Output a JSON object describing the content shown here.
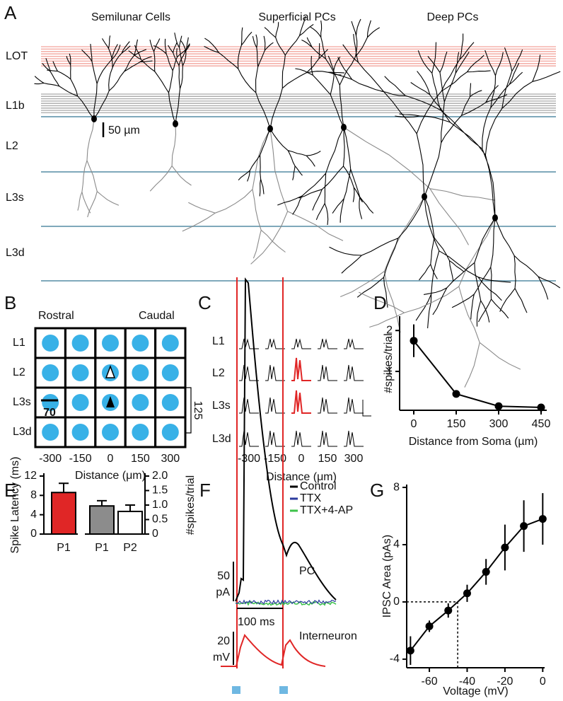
{
  "panel_a": {
    "label": "A",
    "titles": [
      "Semilunar Cells",
      "Superficial PCs",
      "Deep PCs"
    ],
    "layers": [
      "LOT",
      "L1b",
      "L2",
      "L3s",
      "L3d"
    ],
    "scale_bar": "50 µm"
  },
  "panel_b": {
    "label": "B",
    "rostral": "Rostral",
    "caudal": "Caudal",
    "rows": [
      "L1",
      "L2",
      "L3s",
      "L3d"
    ],
    "columns": [
      -300,
      -150,
      0,
      150,
      300
    ],
    "xlabel": "Distance (μm)",
    "width_label": "70",
    "height_label": "125"
  },
  "panel_c": {
    "label": "C",
    "rows": [
      "L1",
      "L2",
      "L3s",
      "L3d"
    ],
    "columns": [
      -300,
      -150,
      0,
      150,
      300
    ],
    "xlabel": "Distance (μm)"
  },
  "panel_f": {
    "label": "F",
    "legend": [
      "Control",
      "TTX",
      "TTX+4-AP"
    ],
    "legend_colors": [
      "#000000",
      "#2b3a9e",
      "#3cc24a"
    ],
    "trace_labels": [
      "PC",
      "Interneuron"
    ],
    "current_scale": [
      "50",
      "pA"
    ],
    "time_scale": "100 ms",
    "voltage_scale": [
      "20",
      "mV"
    ]
  },
  "chart_data": [
    {
      "type": "line",
      "label": "D",
      "ylabel": "#spikes/trial",
      "xlabel": "Distance from Soma (µm)",
      "color": "#000000",
      "x": [
        0,
        150,
        300,
        450
      ],
      "values": [
        1.75,
        0.45,
        0.15,
        0.12
      ],
      "errors": [
        0.4,
        0.06,
        0.02,
        0.02
      ],
      "xlim": [
        -50,
        470
      ],
      "xticks": [
        0,
        150,
        300,
        450
      ],
      "ylim": [
        0.05,
        2.35
      ],
      "yticks": [
        1,
        2
      ]
    },
    {
      "type": "bar",
      "label": "E",
      "ylabel": "Spike Latency (ms)",
      "y2label": "#spikes/trial",
      "categories": [
        "P1",
        "P1",
        "P2"
      ],
      "series": [
        {
          "axis": "y",
          "color": "#e02626",
          "values": [
            8.6,
            null,
            null
          ],
          "errors": [
            1.9,
            null,
            null
          ]
        },
        {
          "axis": "y2",
          "color": "#8c8c8c",
          "values": [
            null,
            0.97,
            null
          ],
          "errors": [
            null,
            0.18,
            null
          ]
        },
        {
          "axis": "y2",
          "color": "#ffffff",
          "values": [
            null,
            null,
            0.78
          ],
          "errors": [
            null,
            null,
            0.22
          ]
        }
      ],
      "ylim": [
        0,
        12
      ],
      "yticks": [
        0,
        4,
        8,
        12
      ],
      "y2lim": [
        0,
        2
      ],
      "y2ticks": [
        0,
        0.5,
        {
          "value": 1,
          "label": "1.0"
        },
        1.5,
        {
          "value": 2,
          "label": "2.0"
        }
      ]
    },
    {
      "type": "line",
      "label": "G",
      "ylabel": "IPSC Area (pAs)",
      "xlabel": "Voltage (mV)",
      "color": "#000000",
      "x": [
        -70,
        -60,
        -50,
        -40,
        -30,
        -20,
        -10,
        0
      ],
      "values": [
        -3.4,
        -1.7,
        -0.6,
        0.6,
        2.1,
        3.8,
        5.3,
        5.8
      ],
      "errors": [
        1.0,
        0.4,
        0.5,
        0.6,
        0.9,
        1.6,
        1.8,
        1.8
      ],
      "dashed_x": -45,
      "xlim": [
        -72,
        1
      ],
      "xticks": [
        -60,
        -40,
        -20,
        0
      ],
      "ylim": [
        -4.6,
        8.2
      ],
      "yticks": [
        -4,
        0,
        4,
        8
      ]
    }
  ]
}
